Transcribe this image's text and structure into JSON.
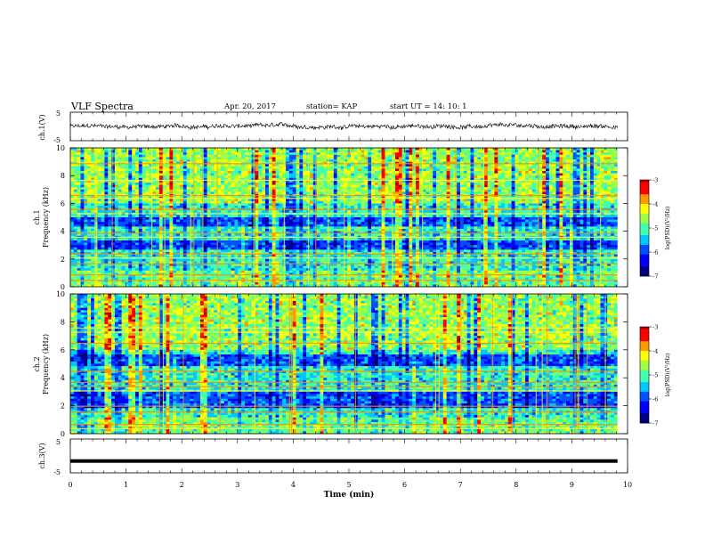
{
  "header": {
    "title": "VLF Spectra",
    "date": "Apr. 20, 2017",
    "station": "station= KAP",
    "start": "start  UT =   14: 10: 1"
  },
  "colors": {
    "colormap": [
      "#00007f",
      "#0000ff",
      "#0050ff",
      "#00c8ff",
      "#40ffb0",
      "#a0ff40",
      "#ffff00",
      "#ff9900",
      "#ff0000",
      "#b00000",
      "#ffffff"
    ]
  },
  "chart_data": [
    {
      "type": "line",
      "name": "ch1-waveform",
      "ylabel": "ch.1(V)",
      "ylim": [
        -5,
        5
      ],
      "yticks": [
        "5",
        "-5"
      ],
      "xlim": [
        0,
        10
      ],
      "y_mean": 0.0,
      "y_range": [
        -2.5,
        2.2
      ]
    },
    {
      "type": "heatmap",
      "name": "ch1-spectrogram",
      "ylabel_top": "ch.1",
      "ylabel": "Frequency  (kHz)",
      "ylim": [
        0,
        10
      ],
      "yticks": [
        "0",
        "2",
        "4",
        "6",
        "8",
        "10"
      ],
      "xlim": [
        0,
        9.82
      ],
      "quiet_bands_khz": [
        [
          2.6,
          3.4
        ],
        [
          4.3,
          5.0
        ]
      ],
      "colorbar": {
        "label": "log(PSD)(V²/Hz)",
        "range": [
          -7,
          -3
        ],
        "ticks": [
          "-3",
          "-4",
          "-5",
          "-6",
          "-7"
        ]
      }
    },
    {
      "type": "heatmap",
      "name": "ch2-spectrogram",
      "ylabel_top": "ch.2",
      "ylabel": "Frequency  (kHz)",
      "ylim": [
        0,
        10
      ],
      "yticks": [
        "0",
        "2",
        "4",
        "6",
        "8",
        "10"
      ],
      "xlim": [
        0,
        9.82
      ],
      "quiet_bands_khz": [
        [
          1.8,
          3.0
        ],
        [
          4.8,
          5.6
        ]
      ],
      "colorbar": {
        "label": "log(PSD)(V²/Hz)",
        "range": [
          -7,
          -3
        ],
        "ticks": [
          "-3",
          "-4",
          "-5",
          "-6",
          "-7"
        ]
      }
    },
    {
      "type": "line",
      "name": "ch3-waveform",
      "ylabel": "ch.3(V)",
      "ylim": [
        -5,
        5
      ],
      "yticks": [
        "5",
        "-5"
      ],
      "xlim": [
        0,
        10
      ],
      "y_constant": -1.5
    }
  ],
  "xaxis": {
    "label": "Time  (min)",
    "ticks": [
      "0",
      "1",
      "2",
      "3",
      "4",
      "5",
      "6",
      "7",
      "8",
      "9",
      "10"
    ]
  }
}
